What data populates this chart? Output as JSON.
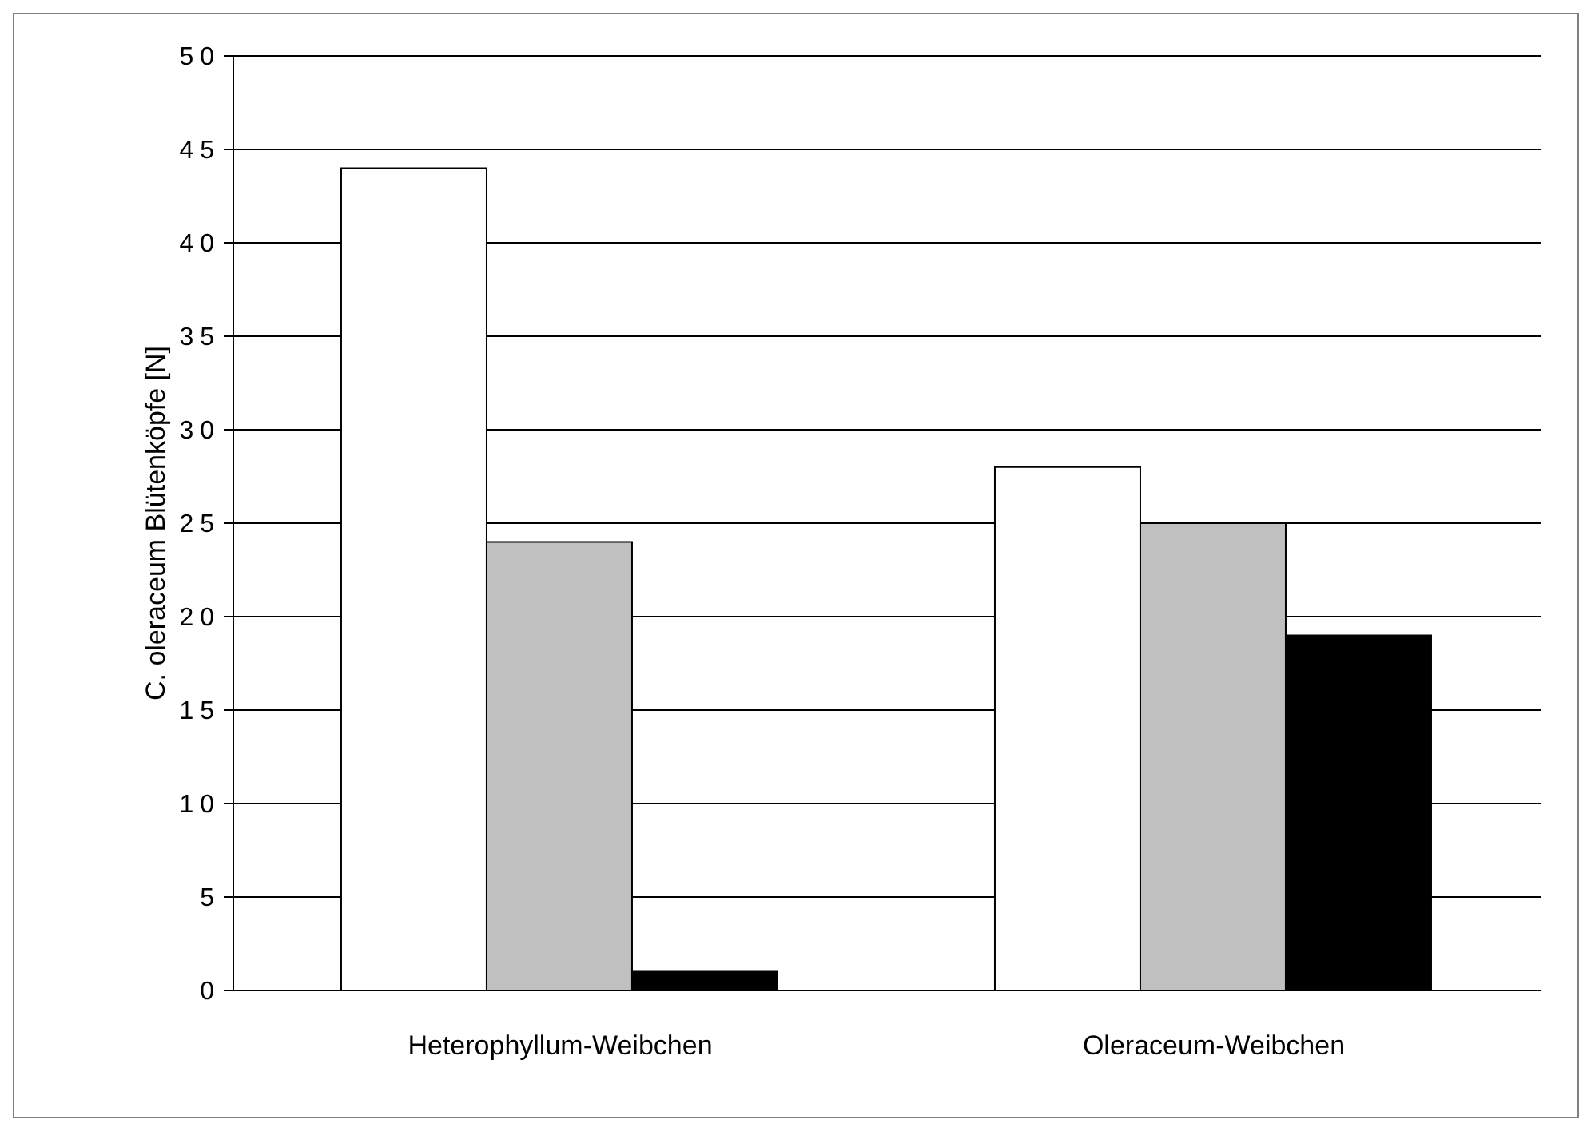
{
  "chart_data": {
    "type": "bar",
    "ylabel": "C. oleraceum Blütenköpfe [N]",
    "categories": [
      "Heterophyllum-Weibchen",
      "Oleraceum-Weibchen"
    ],
    "series": [
      {
        "color": "#ffffff",
        "values": [
          44,
          28
        ]
      },
      {
        "color": "#c0c0c0",
        "values": [
          24,
          25
        ]
      },
      {
        "color": "#000000",
        "values": [
          1,
          19
        ]
      }
    ],
    "ylim": [
      0,
      50
    ],
    "yticks": [
      0,
      5,
      10,
      15,
      20,
      25,
      30,
      35,
      40,
      45,
      50
    ],
    "grid": "y",
    "legend": false
  }
}
